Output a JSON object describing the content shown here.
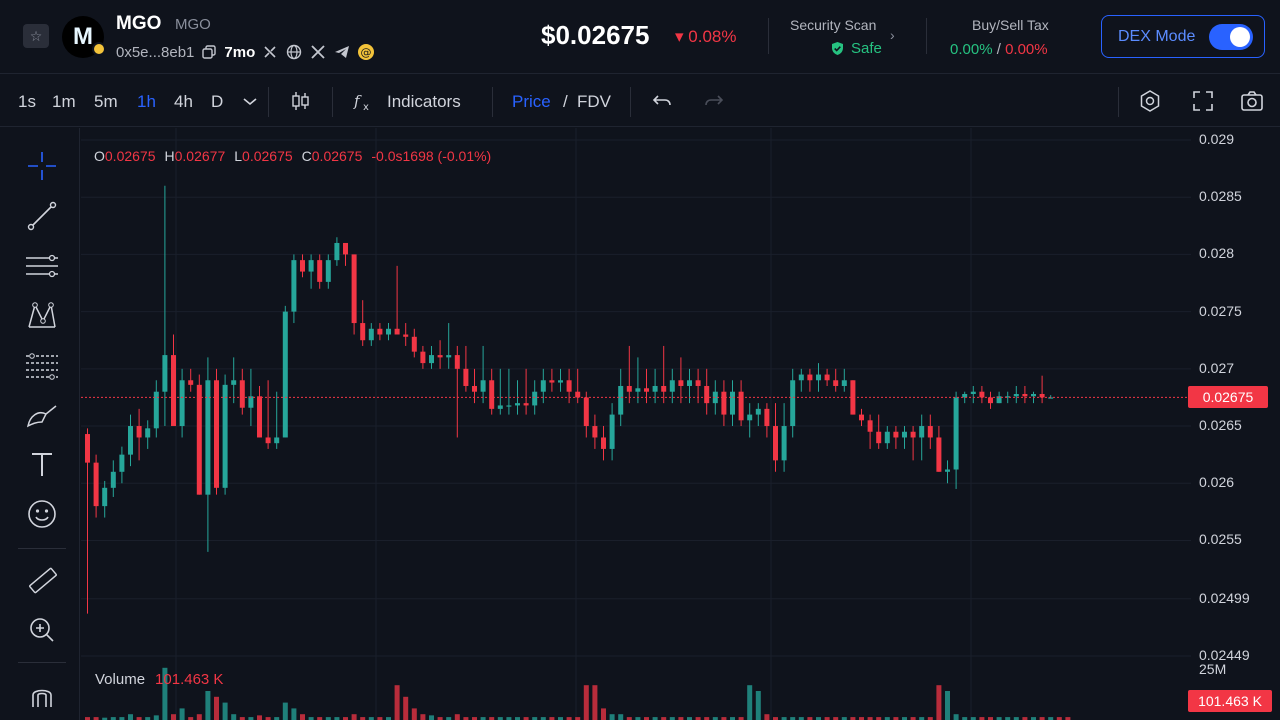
{
  "header": {
    "token_name": "MGO",
    "token_symbol": "MGO",
    "logo_letter": "M",
    "address": "0x5e...8eb1",
    "age": "7mo",
    "price": "$0.02675",
    "price_change": "0.08%",
    "security_title": "Security Scan",
    "security_status": "Safe",
    "tax_title": "Buy/Sell Tax",
    "buy_tax": "0.00%",
    "tax_sep": "/",
    "sell_tax": "0.00%",
    "dex_mode_label": "DEX Mode",
    "dex_mode_on": true
  },
  "toolbar": {
    "timeframes": [
      "1s",
      "1m",
      "5m",
      "1h",
      "4h",
      "D"
    ],
    "active_timeframe": "1h",
    "indicators_label": "Indicators",
    "price_label": "Price",
    "slash": "/",
    "fdv_label": "FDV"
  },
  "ohlc": {
    "o_key": "O",
    "o_val": "0.02675",
    "h_key": "H",
    "h_val": "0.02677",
    "l_key": "L",
    "l_val": "0.02675",
    "c_key": "C",
    "c_val": "0.02675",
    "change": "-0.0s1698 (-0.01%)"
  },
  "volume": {
    "label": "Volume",
    "value": "101.463 K",
    "axis_label": "25M",
    "tag": "101.463 K"
  },
  "current_price_tag": "0.02675",
  "colors": {
    "up": "#26a69a",
    "down": "#f23645",
    "accent": "#2962ff",
    "background": "#0f131c"
  },
  "chart_data": {
    "type": "candlestick",
    "y_ticks": [
      "0.029",
      "0.0285",
      "0.028",
      "0.0275",
      "0.027",
      "0.0265",
      "0.026",
      "0.0255",
      "0.02499",
      "0.02449"
    ],
    "ylim": [
      0.02449,
      0.029
    ],
    "current_price": 0.02675,
    "grid": true,
    "candles": [
      [
        0.02643,
        0.02648,
        0.02486,
        0.02618
      ],
      [
        0.02618,
        0.02625,
        0.0257,
        0.0258
      ],
      [
        0.0258,
        0.02602,
        0.0257,
        0.02596
      ],
      [
        0.02596,
        0.0262,
        0.02588,
        0.0261
      ],
      [
        0.0261,
        0.02632,
        0.026,
        0.02625
      ],
      [
        0.02625,
        0.0266,
        0.02615,
        0.0265
      ],
      [
        0.0265,
        0.02665,
        0.0262,
        0.0264
      ],
      [
        0.0264,
        0.02655,
        0.0263,
        0.02648
      ],
      [
        0.02648,
        0.0269,
        0.0264,
        0.0268
      ],
      [
        0.0268,
        0.0286,
        0.0265,
        0.02712
      ],
      [
        0.02712,
        0.0273,
        0.0265,
        0.0265
      ],
      [
        0.0265,
        0.027,
        0.0264,
        0.0269
      ],
      [
        0.0269,
        0.027,
        0.0268,
        0.02686
      ],
      [
        0.02686,
        0.02695,
        0.0259,
        0.0259
      ],
      [
        0.0259,
        0.0271,
        0.0254,
        0.0269
      ],
      [
        0.0269,
        0.027,
        0.0259,
        0.02596
      ],
      [
        0.02596,
        0.02695,
        0.0259,
        0.02686
      ],
      [
        0.02686,
        0.0271,
        0.0267,
        0.0269
      ],
      [
        0.0269,
        0.027,
        0.0266,
        0.02666
      ],
      [
        0.02666,
        0.027,
        0.0265,
        0.02676
      ],
      [
        0.02676,
        0.02685,
        0.0264,
        0.0264
      ],
      [
        0.0264,
        0.0269,
        0.0263,
        0.02635
      ],
      [
        0.02635,
        0.0268,
        0.0263,
        0.0264
      ],
      [
        0.0264,
        0.02755,
        0.0264,
        0.0275
      ],
      [
        0.0275,
        0.028,
        0.0274,
        0.02795
      ],
      [
        0.02795,
        0.028,
        0.0278,
        0.02785
      ],
      [
        0.02785,
        0.028,
        0.0277,
        0.02795
      ],
      [
        0.02795,
        0.028,
        0.0277,
        0.02776
      ],
      [
        0.02776,
        0.028,
        0.0277,
        0.02795
      ],
      [
        0.02795,
        0.02815,
        0.0279,
        0.0281
      ],
      [
        0.0281,
        0.0281,
        0.0279,
        0.028
      ],
      [
        0.028,
        0.028,
        0.0273,
        0.0274
      ],
      [
        0.0274,
        0.0276,
        0.0272,
        0.02725
      ],
      [
        0.02725,
        0.0274,
        0.0272,
        0.02735
      ],
      [
        0.02735,
        0.0274,
        0.02725,
        0.0273
      ],
      [
        0.0273,
        0.0274,
        0.02725,
        0.02735
      ],
      [
        0.02735,
        0.0279,
        0.0273,
        0.0273
      ],
      [
        0.0273,
        0.0274,
        0.0272,
        0.02728
      ],
      [
        0.02728,
        0.02735,
        0.0271,
        0.02715
      ],
      [
        0.02715,
        0.0272,
        0.027,
        0.02705
      ],
      [
        0.02705,
        0.0272,
        0.027,
        0.02712
      ],
      [
        0.02712,
        0.02725,
        0.027,
        0.0271
      ],
      [
        0.0271,
        0.0274,
        0.027,
        0.02712
      ],
      [
        0.02712,
        0.0272,
        0.0264,
        0.027
      ],
      [
        0.027,
        0.0272,
        0.0268,
        0.02685
      ],
      [
        0.02685,
        0.027,
        0.0267,
        0.0268
      ],
      [
        0.0268,
        0.0272,
        0.0267,
        0.0269
      ],
      [
        0.0269,
        0.027,
        0.0266,
        0.02665
      ],
      [
        0.02665,
        0.027,
        0.0266,
        0.02668
      ],
      [
        0.02668,
        0.027,
        0.0266,
        0.02668
      ],
      [
        0.02668,
        0.0269,
        0.0266,
        0.0267
      ],
      [
        0.0267,
        0.027,
        0.0266,
        0.02668
      ],
      [
        0.02668,
        0.0269,
        0.0266,
        0.0268
      ],
      [
        0.0268,
        0.027,
        0.0267,
        0.0269
      ],
      [
        0.0269,
        0.027,
        0.0268,
        0.02688
      ],
      [
        0.02688,
        0.027,
        0.0268,
        0.0269
      ],
      [
        0.0269,
        0.027,
        0.0267,
        0.0268
      ],
      [
        0.0268,
        0.027,
        0.0267,
        0.02675
      ],
      [
        0.02675,
        0.0268,
        0.0264,
        0.0265
      ],
      [
        0.0265,
        0.0266,
        0.0263,
        0.0264
      ],
      [
        0.0264,
        0.0265,
        0.0262,
        0.0263
      ],
      [
        0.0263,
        0.0267,
        0.0262,
        0.0266
      ],
      [
        0.0266,
        0.027,
        0.0265,
        0.02685
      ],
      [
        0.02685,
        0.0272,
        0.0267,
        0.0268
      ],
      [
        0.0268,
        0.0271,
        0.0267,
        0.02683
      ],
      [
        0.02683,
        0.027,
        0.0267,
        0.0268
      ],
      [
        0.0268,
        0.027,
        0.0267,
        0.02685
      ],
      [
        0.02685,
        0.0272,
        0.0267,
        0.0268
      ],
      [
        0.0268,
        0.027,
        0.0267,
        0.0269
      ],
      [
        0.0269,
        0.0271,
        0.0267,
        0.02685
      ],
      [
        0.02685,
        0.027,
        0.0267,
        0.0269
      ],
      [
        0.0269,
        0.027,
        0.0267,
        0.02685
      ],
      [
        0.02685,
        0.027,
        0.0266,
        0.0267
      ],
      [
        0.0267,
        0.0269,
        0.0266,
        0.0268
      ],
      [
        0.0268,
        0.0269,
        0.0265,
        0.0266
      ],
      [
        0.0266,
        0.0269,
        0.0265,
        0.0268
      ],
      [
        0.0268,
        0.0269,
        0.0265,
        0.02655
      ],
      [
        0.02655,
        0.0267,
        0.0264,
        0.0266
      ],
      [
        0.0266,
        0.0267,
        0.0265,
        0.02665
      ],
      [
        0.02665,
        0.0267,
        0.0264,
        0.0265
      ],
      [
        0.0265,
        0.0267,
        0.0261,
        0.0262
      ],
      [
        0.0262,
        0.0267,
        0.0261,
        0.0265
      ],
      [
        0.0265,
        0.027,
        0.0264,
        0.0269
      ],
      [
        0.0269,
        0.027,
        0.0268,
        0.02695
      ],
      [
        0.02695,
        0.027,
        0.0268,
        0.0269
      ],
      [
        0.0269,
        0.02705,
        0.0268,
        0.02695
      ],
      [
        0.02695,
        0.027,
        0.02685,
        0.0269
      ],
      [
        0.0269,
        0.027,
        0.0268,
        0.02685
      ],
      [
        0.02685,
        0.027,
        0.0268,
        0.0269
      ],
      [
        0.0269,
        0.0269,
        0.0266,
        0.0266
      ],
      [
        0.0266,
        0.02665,
        0.0265,
        0.02655
      ],
      [
        0.02655,
        0.0266,
        0.0263,
        0.02645
      ],
      [
        0.02645,
        0.0266,
        0.0263,
        0.02635
      ],
      [
        0.02635,
        0.0265,
        0.0263,
        0.02645
      ],
      [
        0.02645,
        0.0265,
        0.0263,
        0.0264
      ],
      [
        0.0264,
        0.0265,
        0.0263,
        0.02645
      ],
      [
        0.02645,
        0.0265,
        0.0262,
        0.0264
      ],
      [
        0.0264,
        0.0266,
        0.0262,
        0.0265
      ],
      [
        0.0265,
        0.0266,
        0.0263,
        0.0264
      ],
      [
        0.0264,
        0.0265,
        0.0261,
        0.0261
      ],
      [
        0.0261,
        0.0262,
        0.026,
        0.02612
      ],
      [
        0.02612,
        0.0268,
        0.02595,
        0.02675
      ],
      [
        0.02675,
        0.0268,
        0.0267,
        0.02678
      ],
      [
        0.02678,
        0.02685,
        0.0267,
        0.0268
      ],
      [
        0.0268,
        0.02685,
        0.0267,
        0.02675
      ],
      [
        0.02675,
        0.0268,
        0.02665,
        0.0267
      ],
      [
        0.0267,
        0.0268,
        0.0267,
        0.02676
      ],
      [
        0.02676,
        0.0268,
        0.0267,
        0.02676
      ],
      [
        0.02676,
        0.02685,
        0.0267,
        0.02678
      ],
      [
        0.02678,
        0.02685,
        0.0267,
        0.02676
      ],
      [
        0.02676,
        0.0268,
        0.0267,
        0.02678
      ],
      [
        0.02678,
        0.02694,
        0.0267,
        0.02675
      ],
      [
        0.02675,
        0.02677,
        0.02675,
        0.02675
      ]
    ],
    "volumes": [
      0.05,
      0.05,
      0.04,
      0.05,
      0.05,
      0.1,
      0.05,
      0.05,
      0.08,
      0.9,
      0.1,
      0.2,
      0.05,
      0.1,
      0.5,
      0.4,
      0.3,
      0.1,
      0.05,
      0.05,
      0.08,
      0.05,
      0.05,
      0.3,
      0.2,
      0.1,
      0.05,
      0.05,
      0.05,
      0.05,
      0.05,
      0.1,
      0.05,
      0.05,
      0.05,
      0.05,
      0.6,
      0.4,
      0.2,
      0.1,
      0.08,
      0.05,
      0.05,
      0.1,
      0.05,
      0.05,
      0.05,
      0.05,
      0.05,
      0.05,
      0.05,
      0.05,
      0.05,
      0.05,
      0.05,
      0.05,
      0.05,
      0.05,
      0.6,
      0.6,
      0.2,
      0.1,
      0.1,
      0.05,
      0.05,
      0.05,
      0.05,
      0.05,
      0.05,
      0.05,
      0.05,
      0.05,
      0.05,
      0.05,
      0.05,
      0.05,
      0.05,
      0.6,
      0.5,
      0.1,
      0.05,
      0.05,
      0.05,
      0.05,
      0.05,
      0.05,
      0.05,
      0.05,
      0.05,
      0.05,
      0.05,
      0.05,
      0.05,
      0.05,
      0.05,
      0.05,
      0.05,
      0.05,
      0.05,
      0.6,
      0.5,
      0.1,
      0.05,
      0.05,
      0.05,
      0.05,
      0.05,
      0.05,
      0.05,
      0.05,
      0.05,
      0.05,
      0.05,
      0.05,
      0.05
    ]
  }
}
